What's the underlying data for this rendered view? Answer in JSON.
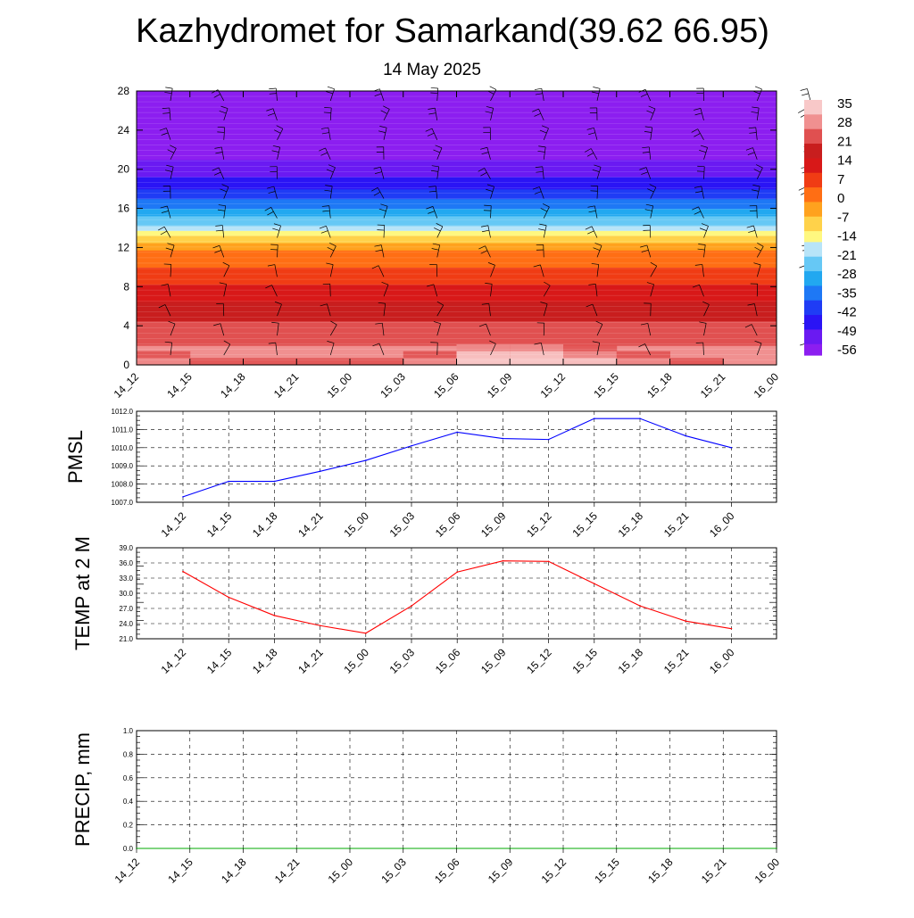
{
  "header": {
    "title": "Kazhydromet for Samarkand(39.62 66.95)",
    "subtitle": "14 May 2025"
  },
  "time_labels": [
    "14_12",
    "14_15",
    "14_18",
    "14_21",
    "15_00",
    "15_03",
    "15_06",
    "15_09",
    "15_12",
    "15_15",
    "15_18",
    "15_21",
    "16_00"
  ],
  "chart_data": [
    {
      "id": "temperature-height",
      "type": "heatmap",
      "x": [
        "14_12",
        "14_15",
        "14_18",
        "14_21",
        "15_00",
        "15_03",
        "15_06",
        "15_09",
        "15_12",
        "15_15",
        "15_18",
        "15_21",
        "16_00"
      ],
      "yticks": [
        0,
        4,
        8,
        12,
        16,
        20,
        24,
        28
      ],
      "ylim": [
        0,
        28
      ],
      "colorbar_ticks": [
        35,
        28,
        21,
        14,
        7,
        0,
        -7,
        -14,
        -21,
        -28,
        -35,
        -42,
        -49,
        -56
      ],
      "colorbar_range": [
        -60,
        37
      ],
      "level_values": [
        {
          "y": 0,
          "value": 30
        },
        {
          "y": 2,
          "value": 26
        },
        {
          "y": 4,
          "value": 22
        },
        {
          "y": 6,
          "value": 17
        },
        {
          "y": 8,
          "value": 11
        },
        {
          "y": 10,
          "value": 5
        },
        {
          "y": 12,
          "value": -2
        },
        {
          "y": 13,
          "value": -10
        },
        {
          "y": 14,
          "value": -20
        },
        {
          "y": 16,
          "value": -33
        },
        {
          "y": 18,
          "value": -44
        },
        {
          "y": 20,
          "value": -52
        },
        {
          "y": 22,
          "value": -57
        },
        {
          "y": 24,
          "value": -60
        },
        {
          "y": 28,
          "value": -60
        }
      ],
      "surface_values": [
        33,
        25,
        26,
        25,
        26,
        27,
        34,
        36,
        36,
        31,
        27,
        25,
        24
      ],
      "wind_barbs": true,
      "colors": [
        "#8c1ef0",
        "#6a1af2",
        "#2a14f5",
        "#1f3cf5",
        "#1e78f5",
        "#22a8f0",
        "#66c8f5",
        "#b8e4f8",
        "#fff880",
        "#ffd24a",
        "#ffa21e",
        "#ff6e14",
        "#f03c14",
        "#d81818",
        "#c81e1e",
        "#e05050",
        "#f09090",
        "#f8c8c8"
      ]
    },
    {
      "id": "pmsl",
      "type": "line",
      "ylabel": "PMSL",
      "x": [
        "14_12",
        "14_15",
        "14_18",
        "14_21",
        "15_00",
        "15_03",
        "15_06",
        "15_09",
        "15_12",
        "15_15",
        "15_18",
        "15_21",
        "16_00"
      ],
      "y": [
        1007.3,
        1008.15,
        1008.15,
        1008.7,
        1009.3,
        1010.1,
        1010.85,
        1010.5,
        1010.45,
        1011.6,
        1011.6,
        1010.65,
        1010.0
      ],
      "ylim": [
        1007.0,
        1012.0
      ],
      "yticks": [
        "1007.0",
        "1008.0",
        "1009.0",
        "1010.0",
        "1011.0",
        "1012.0"
      ],
      "color": "#0000ff"
    },
    {
      "id": "temp2m",
      "type": "line",
      "ylabel": "TEMP at 2 M",
      "x": [
        "14_12",
        "14_15",
        "14_18",
        "14_21",
        "15_00",
        "15_03",
        "15_06",
        "15_09",
        "15_12",
        "15_15",
        "15_18",
        "15_21",
        "16_00"
      ],
      "y": [
        34.3,
        29.2,
        25.6,
        23.6,
        22.1,
        27.5,
        34.2,
        36.4,
        36.3,
        31.9,
        27.5,
        24.5,
        23.0
      ],
      "ylim": [
        21.0,
        39.0
      ],
      "yticks": [
        "21.0",
        "24.0",
        "27.0",
        "30.0",
        "33.0",
        "36.0",
        "39.0"
      ],
      "color": "#ff0000"
    },
    {
      "id": "precip",
      "type": "line",
      "ylabel": "PRECIP, mm",
      "x": [
        "14_12",
        "14_15",
        "14_18",
        "14_21",
        "15_00",
        "15_03",
        "15_06",
        "15_09",
        "15_12",
        "15_15",
        "15_18",
        "15_21",
        "16_00"
      ],
      "y": [
        0,
        0,
        0,
        0,
        0,
        0,
        0,
        0,
        0,
        0,
        0,
        0,
        0
      ],
      "ylim": [
        0.0,
        1.0
      ],
      "yticks": [
        "0.0",
        "0.2",
        "0.4",
        "0.6",
        "0.8",
        "1.0"
      ],
      "color": "#00aa00"
    }
  ]
}
